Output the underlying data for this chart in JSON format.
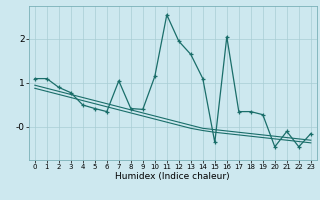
{
  "xlabel": "Humidex (Indice chaleur)",
  "bg_color": "#cde8ef",
  "line_color": "#1a6e6a",
  "grid_color": "#a8cdd4",
  "x": [
    0,
    1,
    2,
    3,
    4,
    5,
    6,
    7,
    8,
    9,
    10,
    11,
    12,
    13,
    14,
    15,
    16,
    17,
    18,
    19,
    20,
    21,
    22,
    23
  ],
  "y_main": [
    1.1,
    1.1,
    0.9,
    0.78,
    0.5,
    0.42,
    0.35,
    1.05,
    0.42,
    0.4,
    1.15,
    2.55,
    1.95,
    1.65,
    1.1,
    -0.35,
    2.05,
    0.35,
    0.35,
    0.28,
    -0.45,
    -0.1,
    -0.45,
    -0.15
  ],
  "y_trend1": [
    0.95,
    0.88,
    0.81,
    0.74,
    0.67,
    0.6,
    0.53,
    0.46,
    0.39,
    0.32,
    0.25,
    0.18,
    0.11,
    0.04,
    -0.03,
    -0.06,
    -0.09,
    -0.12,
    -0.15,
    -0.18,
    -0.21,
    -0.24,
    -0.27,
    -0.3
  ],
  "y_trend2": [
    0.88,
    0.81,
    0.74,
    0.67,
    0.6,
    0.53,
    0.46,
    0.39,
    0.32,
    0.25,
    0.18,
    0.11,
    0.04,
    -0.03,
    -0.08,
    -0.12,
    -0.15,
    -0.18,
    -0.21,
    -0.24,
    -0.27,
    -0.3,
    -0.33,
    -0.36
  ],
  "ylim": [
    -0.75,
    2.75
  ],
  "xlim": [
    -0.5,
    23.5
  ],
  "yticks": [
    0.0,
    1.0,
    2.0
  ],
  "ytick_labels": [
    "-0",
    "1",
    "2"
  ],
  "xticks": [
    0,
    1,
    2,
    3,
    4,
    5,
    6,
    7,
    8,
    9,
    10,
    11,
    12,
    13,
    14,
    15,
    16,
    17,
    18,
    19,
    20,
    21,
    22,
    23
  ]
}
